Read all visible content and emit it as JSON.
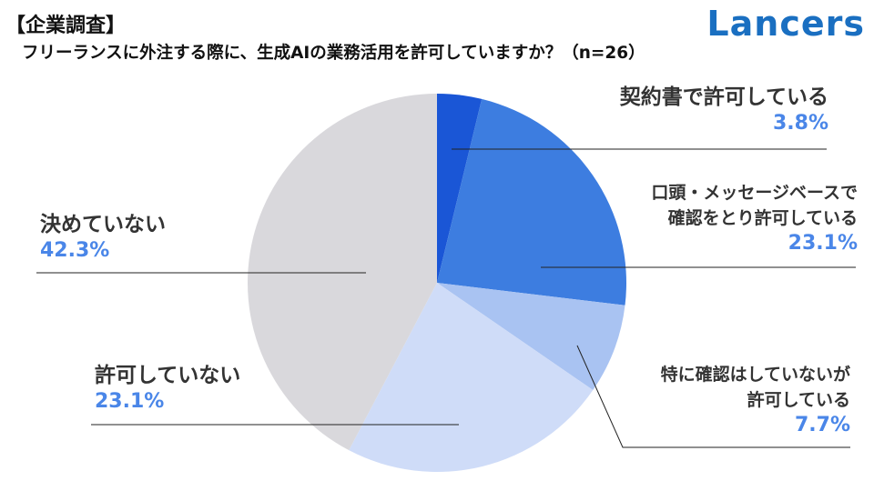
{
  "header": {
    "tag": "【企業調査】",
    "question": "フリーランスに外注する際に、生成AIの業務活用を許可していますか？（n=26）"
  },
  "brand": {
    "logo_text": "Lancers",
    "color": "#1a6fc1"
  },
  "chart_data": {
    "type": "pie",
    "n": 26,
    "slices": [
      {
        "label": "契約書で許可している",
        "value": 3.8,
        "value_text": "3.8%",
        "color": "#1a56d6"
      },
      {
        "label_lines": [
          "口頭・メッセージベースで",
          "確認をとり許可している"
        ],
        "value": 23.1,
        "value_text": "23.1%",
        "color": "#3d7de0"
      },
      {
        "label_lines": [
          "特に確認はしていないが",
          "許可している"
        ],
        "value": 7.7,
        "value_text": "7.7%",
        "color": "#a9c3f2"
      },
      {
        "label": "許可していない",
        "value": 23.1,
        "value_text": "23.1%",
        "color": "#cfdcf8"
      },
      {
        "label": "決めていない",
        "value": 42.3,
        "value_text": "42.3%",
        "color": "#d9d8dc"
      }
    ],
    "start": "12 o'clock",
    "direction": "clockwise",
    "label_color": "#333333",
    "percent_color": "#4a86e8"
  }
}
